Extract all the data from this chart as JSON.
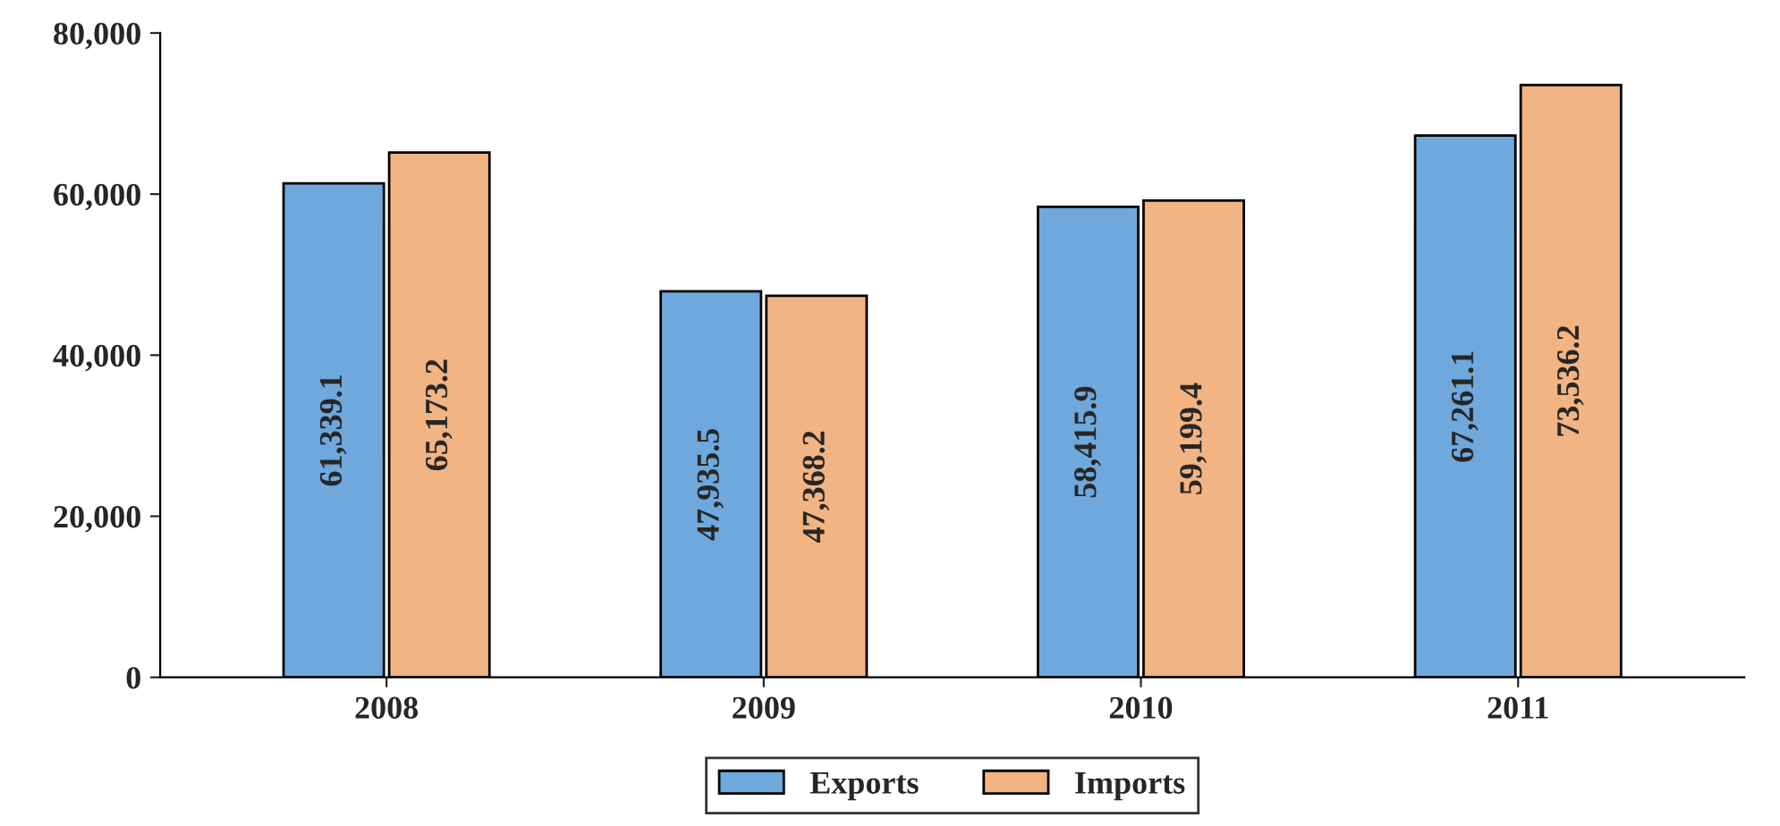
{
  "chart_data": {
    "type": "bar",
    "categories": [
      "2008",
      "2009",
      "2010",
      "2011"
    ],
    "series": [
      {
        "name": "Exports",
        "color": "#6fa8dc",
        "values": [
          61339.1,
          47935.5,
          58415.9,
          67261.1
        ],
        "value_labels": [
          "61,339.1",
          "47,935.5",
          "58,415.9",
          "67,261.1"
        ]
      },
      {
        "name": "Imports",
        "color": "#f2b482",
        "values": [
          65173.2,
          47368.2,
          59199.4,
          73536.2
        ],
        "value_labels": [
          "65,173.2",
          "47,368.2",
          "59,199.4",
          "73,536.2"
        ]
      }
    ],
    "ylim": [
      0,
      80000
    ],
    "yticks": [
      0,
      {
        "value": 20000,
        "label": "20,000"
      },
      {
        "value": 40000,
        "label": "40,000"
      },
      {
        "value": 60000,
        "label": "60,000"
      },
      {
        "value": 80000,
        "label": "80,000"
      }
    ],
    "grid": false,
    "legend": "bottom"
  }
}
